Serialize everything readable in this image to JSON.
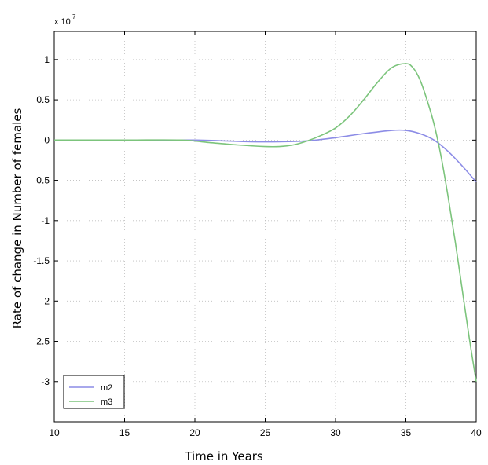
{
  "chart_data": {
    "type": "line",
    "xlabel": "Time in Years",
    "ylabel": "Rate of change in Number of females",
    "y_exponent_label": "x 10",
    "y_exponent_power": "7",
    "xlim": [
      10,
      40
    ],
    "ylim": [
      -3.5,
      1.35
    ],
    "x_ticks": [
      10,
      15,
      20,
      25,
      30,
      35,
      40
    ],
    "x_tick_labels": [
      "10",
      "15",
      "20",
      "25",
      "30",
      "35",
      "40"
    ],
    "y_ticks": [
      1,
      0.5,
      0,
      -0.5,
      -1,
      -1.5,
      -2,
      -2.5,
      -3
    ],
    "y_tick_labels": [
      "1",
      "0.5",
      "0",
      "-0.5",
      "-1",
      "-1.5",
      "-2",
      "-2.5",
      "-3"
    ],
    "grid": true,
    "legend_position": "bottom-left",
    "series": [
      {
        "name": "m2",
        "color": "#8c8ce6",
        "x": [
          10,
          15,
          20,
          22,
          24,
          26,
          28,
          30,
          32,
          34,
          35,
          36,
          37,
          38,
          39,
          40
        ],
        "y": [
          0,
          0,
          0,
          -0.01,
          -0.02,
          -0.02,
          -0.01,
          0.03,
          0.08,
          0.12,
          0.12,
          0.08,
          0.0,
          -0.14,
          -0.32,
          -0.52
        ]
      },
      {
        "name": "m3",
        "color": "#7cc47c",
        "x": [
          10,
          15,
          19,
          21,
          23,
          25,
          26,
          27,
          28,
          29,
          30,
          31,
          32,
          33,
          34,
          35,
          35.5,
          36,
          36.5,
          37,
          37.5,
          38,
          38.5,
          39,
          39.5,
          40
        ],
        "y": [
          0,
          0,
          0,
          -0.03,
          -0.06,
          -0.08,
          -0.08,
          -0.06,
          -0.01,
          0.06,
          0.15,
          0.3,
          0.5,
          0.72,
          0.9,
          0.95,
          0.9,
          0.75,
          0.5,
          0.2,
          -0.2,
          -0.7,
          -1.25,
          -1.85,
          -2.45,
          -3.0
        ]
      }
    ]
  }
}
